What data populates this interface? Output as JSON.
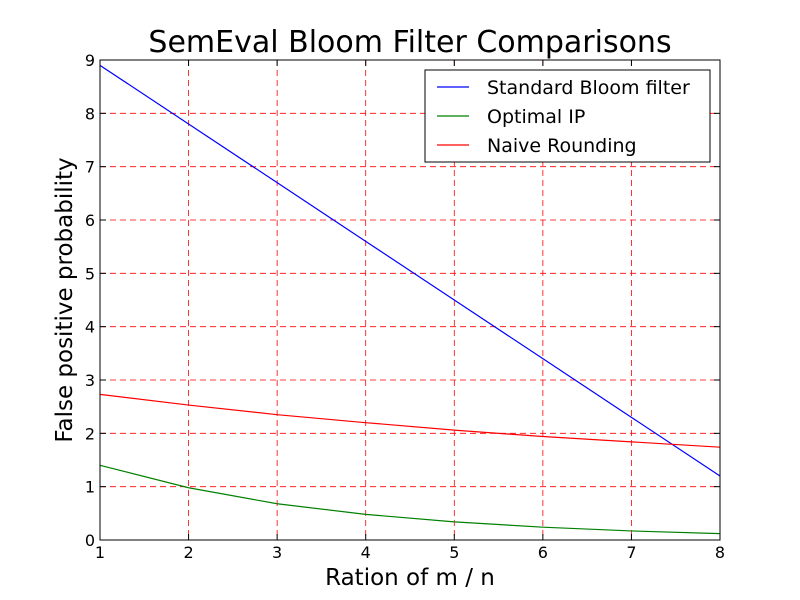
{
  "chart_data": {
    "type": "line",
    "title": "SemEval Bloom Filter Comparisons",
    "xlabel": "Ration of m / n",
    "ylabel": "False positive probability",
    "xlim": [
      1,
      8
    ],
    "ylim": [
      0,
      9
    ],
    "xticks": [
      "1",
      "2",
      "3",
      "4",
      "5",
      "6",
      "7",
      "8"
    ],
    "yticks": [
      "0",
      "1",
      "2",
      "3",
      "4",
      "5",
      "6",
      "7",
      "8",
      "9"
    ],
    "grid": true,
    "grid_color": "#ff0000",
    "legend_position": "top-right",
    "x": [
      1,
      2,
      3,
      4,
      5,
      6,
      7,
      8
    ],
    "series": [
      {
        "name": "Standard Bloom filter",
        "color": "#0000ff",
        "values": [
          8.9,
          7.8,
          6.7,
          5.6,
          4.5,
          3.4,
          2.3,
          1.2
        ]
      },
      {
        "name": "Optimal IP",
        "color": "#008000",
        "values": [
          1.4,
          0.98,
          0.68,
          0.48,
          0.34,
          0.24,
          0.17,
          0.12
        ]
      },
      {
        "name": "Naive Rounding",
        "color": "#ff0000",
        "values": [
          2.73,
          2.53,
          2.35,
          2.2,
          2.06,
          1.94,
          1.84,
          1.74
        ]
      }
    ]
  }
}
